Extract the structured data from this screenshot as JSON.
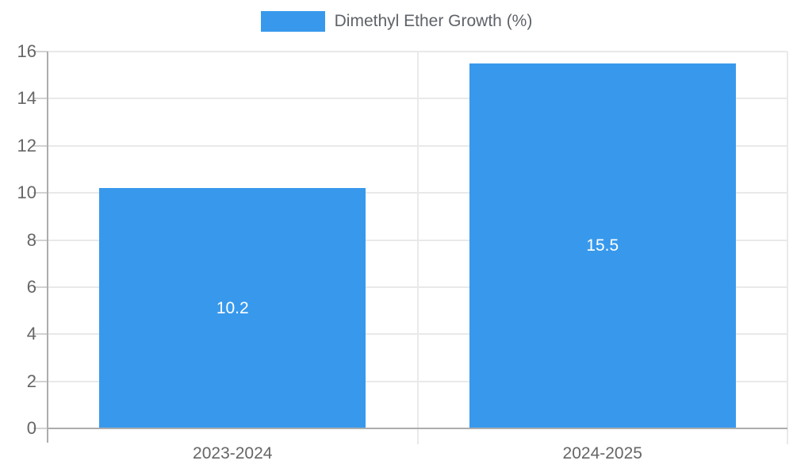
{
  "chart_data": {
    "type": "bar",
    "title": "",
    "legend": {
      "label": "Dimethyl Ether Growth (%)",
      "position": "top"
    },
    "categories": [
      "2023-2024",
      "2024-2025"
    ],
    "series": [
      {
        "name": "Dimethyl Ether Growth (%)",
        "values": [
          10.2,
          15.5
        ]
      }
    ],
    "value_labels": [
      "10.2",
      "15.5"
    ],
    "xlabel": "",
    "ylabel": "",
    "ylim": [
      0,
      16
    ],
    "ytick_step": 2,
    "yticks": [
      0,
      2,
      4,
      6,
      8,
      10,
      12,
      14,
      16
    ],
    "grid": true,
    "colors": {
      "bar": "#3899ec",
      "axis_line": "#adadad",
      "grid_line": "#e9e9e9",
      "tick_text": "#666666",
      "legend_text": "#5f6368",
      "value_label_text": "#ffffff",
      "background": "#ffffff"
    }
  }
}
